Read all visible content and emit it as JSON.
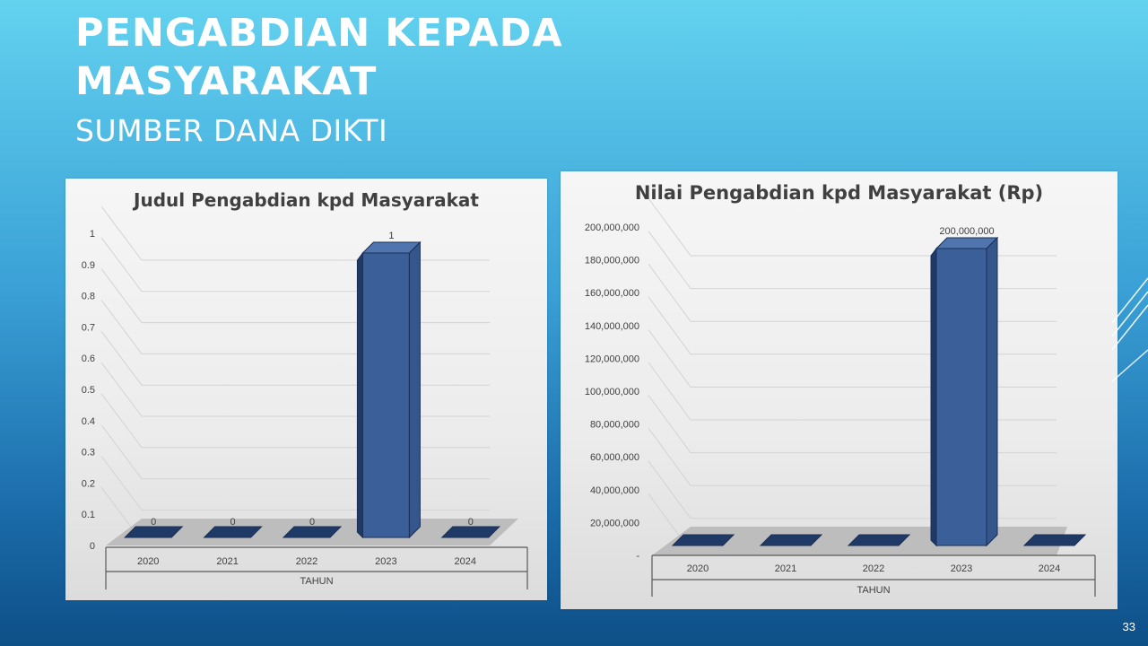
{
  "slide": {
    "title": "PENGABDIAN KEPADA MASYARAKAT",
    "subtitle": "SUMBER DANA DIKTI",
    "page_number": "33"
  },
  "colors": {
    "bar_fill": "#3b5f99",
    "bar_dark": "#1f3a66",
    "bar_top": "#4f74ae",
    "text": "#404040",
    "gridline": "#d3d3d3"
  },
  "chart_data": [
    {
      "type": "bar",
      "title": "Judul Pengabdian kpd Masyarakat",
      "categories": [
        "2020",
        "2021",
        "2022",
        "2023",
        "2024"
      ],
      "values": [
        0,
        0,
        0,
        1,
        0
      ],
      "data_labels": [
        "0",
        "0",
        "0",
        "1",
        "0"
      ],
      "xlabel": "TAHUN",
      "ylabel": "",
      "ylim": [
        0,
        1
      ],
      "yticks": [
        "0",
        "0.1",
        "0.2",
        "0.3",
        "0.4",
        "0.5",
        "0.6",
        "0.7",
        "0.8",
        "0.9",
        "1"
      ],
      "grid": true,
      "legend": "none"
    },
    {
      "type": "bar",
      "title": "Nilai Pengabdian kpd Masyarakat (Rp)",
      "categories": [
        "2020",
        "2021",
        "2022",
        "2023",
        "2024"
      ],
      "values": [
        0,
        0,
        0,
        200000000,
        0
      ],
      "data_labels": [
        "",
        "",
        "",
        "200,000,000",
        ""
      ],
      "xlabel": "TAHUN",
      "ylabel": "",
      "ylim": [
        0,
        200000000
      ],
      "yticks": [
        "-",
        "20,000,000",
        "40,000,000",
        "60,000,000",
        "80,000,000",
        "100,000,000",
        "120,000,000",
        "140,000,000",
        "160,000,000",
        "180,000,000",
        "200,000,000"
      ],
      "grid": true,
      "legend": "none"
    }
  ]
}
